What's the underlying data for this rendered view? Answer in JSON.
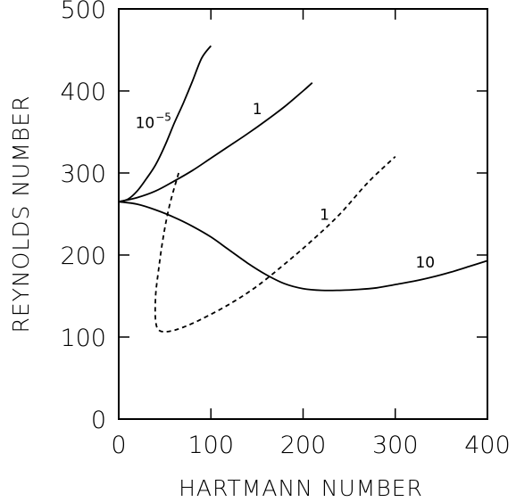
{
  "chart_data": {
    "type": "line",
    "title": "",
    "xlabel": "HARTMANN NUMBER",
    "ylabel": "REYNOLDS NUMBER",
    "xlim": [
      0,
      400
    ],
    "ylim": [
      0,
      500
    ],
    "xticks": [
      0,
      100,
      200,
      300,
      400
    ],
    "yticks": [
      0,
      100,
      200,
      300,
      400,
      500
    ],
    "grid": false,
    "series": [
      {
        "label_base": "10",
        "label_exponent": "−5",
        "style": "solid",
        "color": "#000000",
        "x": [
          0,
          10,
          20,
          30,
          40,
          50,
          60,
          70,
          80,
          90,
          100
        ],
        "y": [
          265,
          268,
          278,
          293,
          310,
          333,
          360,
          385,
          412,
          440,
          455
        ]
      },
      {
        "label_base": "1",
        "style": "solid",
        "color": "#000000",
        "x": [
          0,
          20,
          40,
          60,
          80,
          100,
          120,
          140,
          160,
          180,
          200,
          210
        ],
        "y": [
          265,
          270,
          278,
          290,
          303,
          318,
          333,
          348,
          364,
          381,
          400,
          410
        ]
      },
      {
        "label_base": "10",
        "style": "solid",
        "color": "#000000",
        "x": [
          0,
          20,
          40,
          60,
          80,
          100,
          120,
          140,
          160,
          180,
          200,
          220,
          240,
          260,
          280,
          300,
          320,
          340,
          360,
          380,
          400
        ],
        "y": [
          265,
          262,
          255,
          246,
          235,
          222,
          206,
          190,
          176,
          165,
          159,
          157,
          157,
          158,
          160,
          164,
          168,
          173,
          179,
          186,
          193
        ]
      },
      {
        "label_base": "1",
        "style": "dashed",
        "color": "#000000",
        "x": [
          65,
          55,
          48,
          43,
          40,
          40,
          44,
          55,
          70,
          90,
          120,
          150,
          180,
          210,
          240,
          270,
          300
        ],
        "y": [
          300,
          260,
          220,
          180,
          150,
          120,
          108,
          107,
          112,
          122,
          140,
          162,
          189,
          218,
          250,
          288,
          320
        ]
      }
    ],
    "annotations": [
      {
        "series": 0,
        "x": 18,
        "y": 355
      },
      {
        "series": 1,
        "x": 145,
        "y": 372
      },
      {
        "series": 2,
        "x": 322,
        "y": 185
      },
      {
        "series": 3,
        "x": 218,
        "y": 243
      }
    ]
  }
}
